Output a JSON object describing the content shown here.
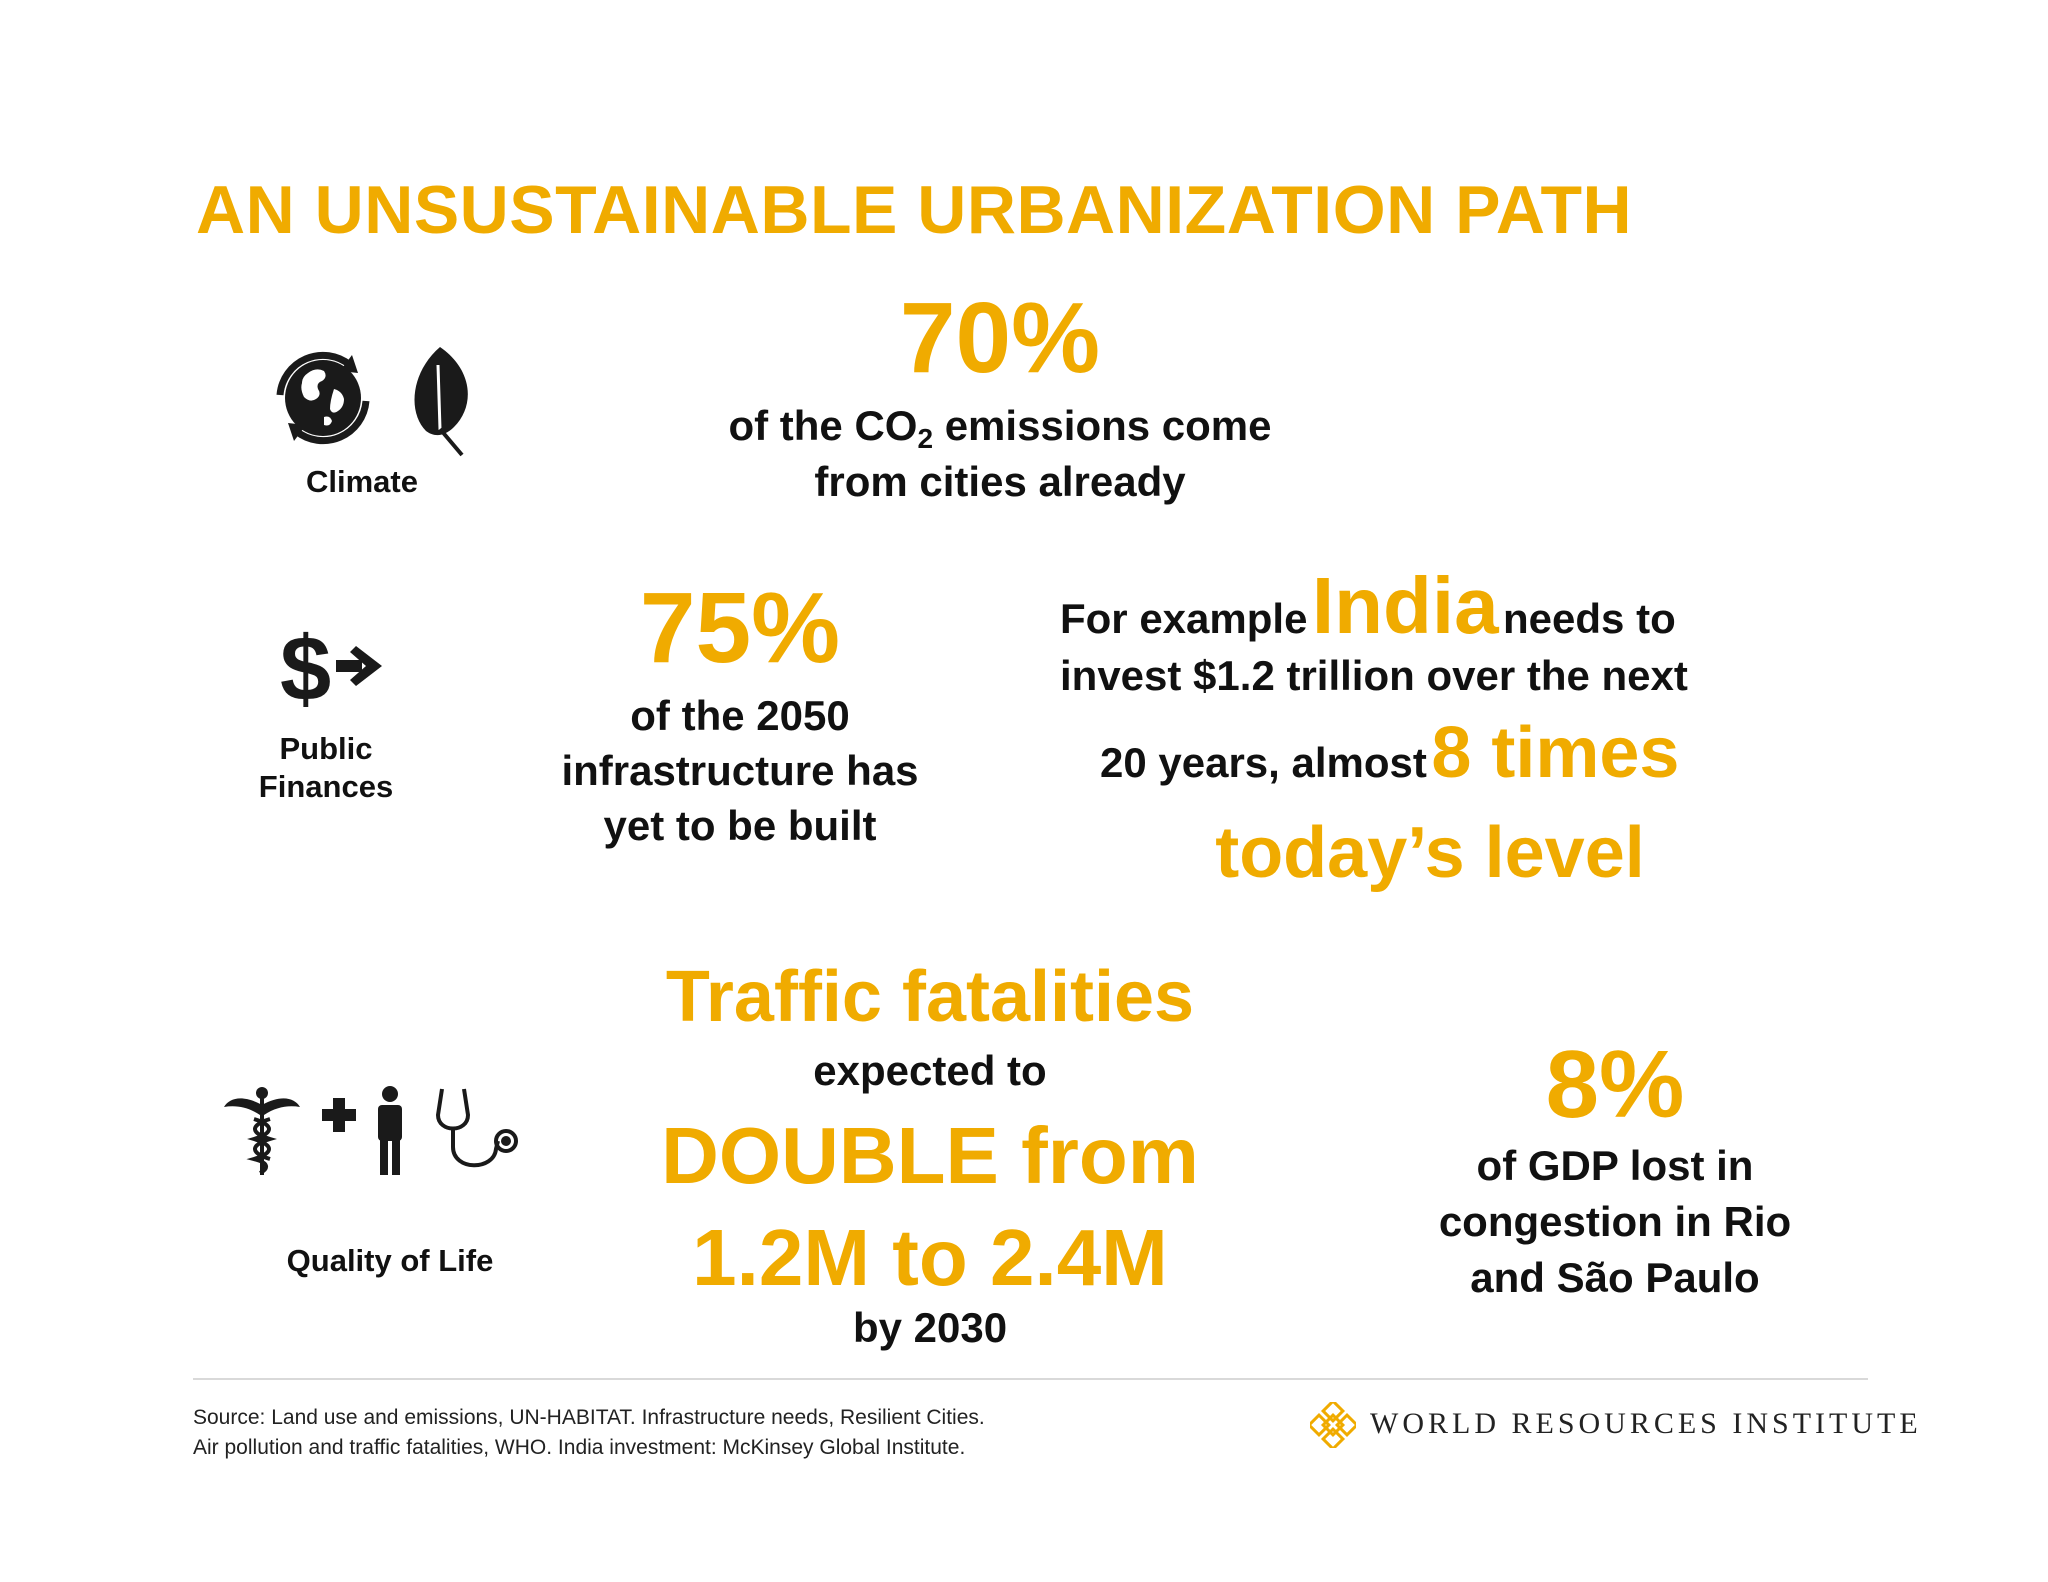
{
  "title": "AN UNSUSTAINABLE URBANIZATION PATH",
  "colors": {
    "accent": "#f0ab00",
    "text": "#111111"
  },
  "climate": {
    "label": "Climate",
    "icons": [
      "globe-arrows-icon",
      "leaf-icon"
    ],
    "stat": "70%",
    "line1_pre": "of the CO",
    "line1_sub": "2",
    "line1_post": " emissions come",
    "line2": "from cities already"
  },
  "public_finances": {
    "label_line1": "Public",
    "label_line2": "Finances",
    "icons": [
      "dollar-arrow-icon"
    ],
    "stat": "75%",
    "desc_line1": "of the 2050",
    "desc_line2": "infrastructure has",
    "desc_line3": "yet to be built",
    "india": {
      "pre": "For example",
      "country": "India",
      "post": "needs to",
      "line2": "invest $1.2 trillion over the next",
      "line3_pre": "20 years, almost",
      "line3_highlight": "8 times",
      "line4": "today’s level"
    }
  },
  "quality_of_life": {
    "label": "Quality of Life",
    "icons": [
      "caduceus-icon",
      "cross-person-icon",
      "stethoscope-icon"
    ],
    "headline": "Traffic fatalities",
    "expected": "expected to",
    "double": "DOUBLE from",
    "range": "1.2M to 2.4M",
    "by": "by 2030",
    "gdp_stat": "8%",
    "gdp_line1": "of GDP lost in",
    "gdp_line2": "congestion in Rio",
    "gdp_line3": "and São Paulo"
  },
  "footer": {
    "source_line1": "Source: Land use  and emissions, UN-HABITAT. Infrastructure needs, Resilient Cities.",
    "source_line2": "Air pollution and traffic fatalities, WHO. India investment: McKinsey Global Institute.",
    "org": "WORLD RESOURCES INSTITUTE",
    "logo_icon": "wri-knot-logo-icon"
  }
}
